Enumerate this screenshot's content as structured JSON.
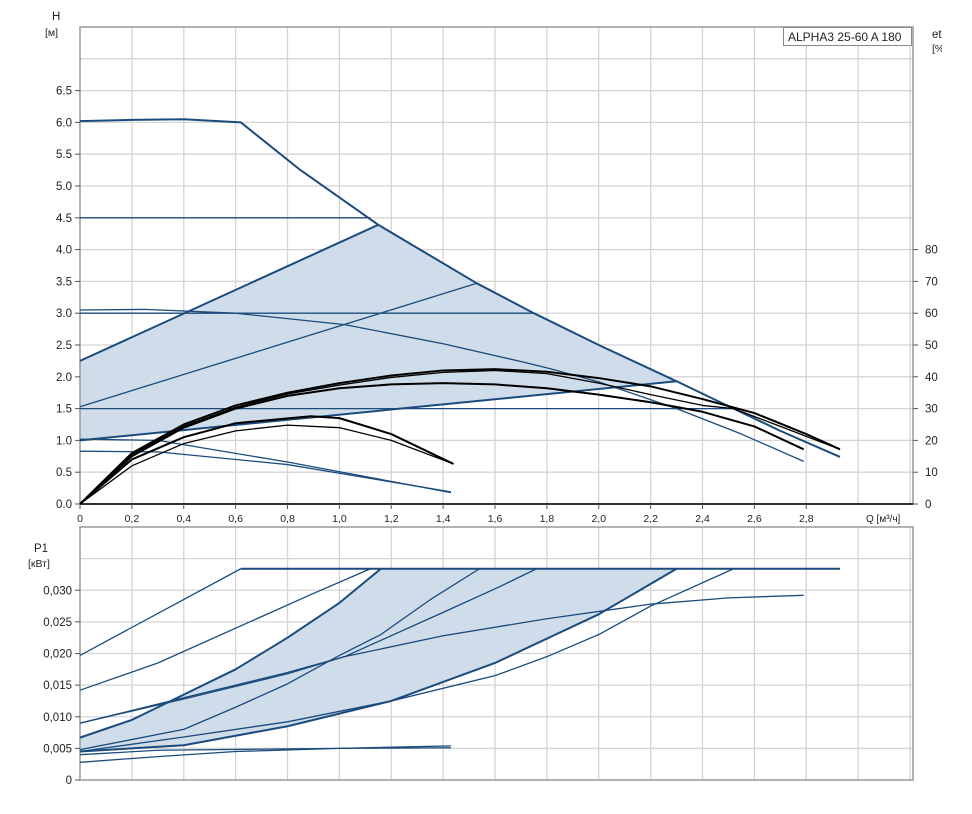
{
  "chart_data": [
    {
      "type": "line",
      "title": "",
      "ylabel": "H",
      "yunit": "[м]",
      "y2label": "eta",
      "y2unit": "[%]",
      "xlabel": "Q [м³/ч]",
      "xlim": [
        0,
        3.2
      ],
      "ylim": [
        0,
        7.5
      ],
      "y2lim": [
        0,
        150
      ],
      "grid": true,
      "legend": "top-right",
      "legend_text": "ALPHA3 25-60 A 180",
      "xticks": [
        "0",
        "0,2",
        "0,4",
        "0,6",
        "0,8",
        "1,0",
        "1,2",
        "1,4",
        "1,6",
        "1,8",
        "2,0",
        "2,2",
        "2,4",
        "2,6",
        "2,8"
      ],
      "yticks": [
        "0.0",
        "0.5",
        "1.0",
        "1.5",
        "2.0",
        "2.5",
        "3.0",
        "3.5",
        "4.0",
        "4.5",
        "5.0",
        "5.5",
        "6.0",
        "6.5"
      ],
      "y2ticks": [
        "0",
        "10",
        "20",
        "30",
        "40",
        "50",
        "60",
        "70",
        "80"
      ],
      "fill_region": [
        [
          0,
          1.0
        ],
        [
          0,
          2.25
        ],
        [
          1.15,
          4.39
        ],
        [
          1.53,
          3.47
        ],
        [
          1.75,
          3.0
        ],
        [
          2.3,
          1.93
        ]
      ],
      "series": [
        {
          "kind": "head",
          "weight": "bold",
          "color": "#1b4b7c",
          "points": [
            [
              0,
              6.02
            ],
            [
              0.2,
              6.04
            ],
            [
              0.4,
              6.05
            ],
            [
              0.62,
              6.0
            ],
            [
              0.85,
              5.25
            ],
            [
              1.15,
              4.39
            ],
            [
              1.53,
              3.47
            ],
            [
              1.75,
              3.0
            ],
            [
              2.0,
              2.5
            ],
            [
              2.3,
              1.93
            ],
            [
              2.52,
              1.5
            ],
            [
              2.7,
              1.15
            ],
            [
              2.93,
              0.74
            ]
          ]
        },
        {
          "kind": "head",
          "weight": "normal",
          "color": "#1b4b7c",
          "points": [
            [
              0,
              4.5
            ],
            [
              1.12,
              4.5
            ]
          ]
        },
        {
          "kind": "head",
          "weight": "bold",
          "color": "#1b4b7c",
          "points": [
            [
              0,
              2.25
            ],
            [
              1.15,
              4.39
            ]
          ]
        },
        {
          "kind": "head",
          "weight": "normal",
          "color": "#1b4b7c",
          "points": [
            [
              0,
              1.53
            ],
            [
              1.53,
              3.47
            ]
          ]
        },
        {
          "kind": "head",
          "weight": "normal",
          "color": "#1b4b7c",
          "points": [
            [
              0,
              3.0
            ],
            [
              1.75,
              3.0
            ]
          ]
        },
        {
          "kind": "head",
          "weight": "normal",
          "color": "#1b4b7c",
          "points": [
            [
              0,
              3.05
            ],
            [
              0.25,
              3.06
            ],
            [
              0.6,
              3.0
            ],
            [
              1.02,
              2.82
            ],
            [
              1.4,
              2.52
            ],
            [
              1.7,
              2.24
            ],
            [
              1.81,
              2.13
            ],
            [
              2.0,
              1.92
            ],
            [
              2.3,
              1.5
            ],
            [
              2.55,
              1.1
            ],
            [
              2.79,
              0.67
            ]
          ]
        },
        {
          "kind": "head",
          "weight": "bold",
          "color": "#1b4b7c",
          "points": [
            [
              0,
              1.0
            ],
            [
              2.3,
              1.93
            ]
          ]
        },
        {
          "kind": "head",
          "weight": "normal",
          "color": "#1b4b7c",
          "points": [
            [
              0,
              1.5
            ],
            [
              2.52,
              1.5
            ]
          ]
        },
        {
          "kind": "head",
          "weight": "normal",
          "color": "#1b4b7c",
          "points": [
            [
              0,
              1.02
            ],
            [
              0.3,
              1.0
            ],
            [
              0.8,
              0.66
            ],
            [
              1.43,
              0.18
            ]
          ]
        },
        {
          "kind": "head",
          "weight": "normal",
          "color": "#1b4b7c",
          "points": [
            [
              0,
              0.83
            ],
            [
              0.3,
              0.82
            ],
            [
              0.8,
              0.62
            ],
            [
              1.43,
              0.19
            ]
          ]
        },
        {
          "kind": "efficiency",
          "weight": "bold",
          "color": "#000000",
          "points": [
            [
              0,
              0
            ],
            [
              0.2,
              0.8
            ],
            [
              0.4,
              1.25
            ],
            [
              0.6,
              1.55
            ],
            [
              0.8,
              1.75
            ],
            [
              1.0,
              1.9
            ],
            [
              1.2,
              2.02
            ],
            [
              1.4,
              2.1
            ],
            [
              1.6,
              2.12
            ],
            [
              1.8,
              2.08
            ],
            [
              2.0,
              1.98
            ],
            [
              2.2,
              1.85
            ],
            [
              2.4,
              1.65
            ],
            [
              2.6,
              1.43
            ],
            [
              2.8,
              1.1
            ],
            [
              2.93,
              0.86
            ]
          ]
        },
        {
          "kind": "efficiency",
          "weight": "normal",
          "color": "#000000",
          "points": [
            [
              0,
              0
            ],
            [
              0.2,
              0.78
            ],
            [
              0.4,
              1.22
            ],
            [
              0.6,
              1.52
            ],
            [
              0.8,
              1.73
            ],
            [
              1.0,
              1.87
            ],
            [
              1.2,
              1.99
            ],
            [
              1.4,
              2.07
            ],
            [
              1.6,
              2.1
            ],
            [
              1.8,
              2.05
            ],
            [
              2.0,
              1.9
            ],
            [
              2.2,
              1.72
            ],
            [
              2.4,
              1.55
            ],
            [
              2.52,
              1.5
            ],
            [
              2.7,
              1.22
            ],
            [
              2.93,
              0.86
            ]
          ]
        },
        {
          "kind": "efficiency",
          "weight": "bold",
          "color": "#000000",
          "points": [
            [
              0,
              0
            ],
            [
              0.2,
              0.75
            ],
            [
              0.4,
              1.2
            ],
            [
              0.6,
              1.5
            ],
            [
              0.8,
              1.7
            ],
            [
              1.0,
              1.82
            ],
            [
              1.2,
              1.88
            ],
            [
              1.4,
              1.9
            ],
            [
              1.6,
              1.88
            ],
            [
              1.8,
              1.82
            ],
            [
              2.0,
              1.72
            ],
            [
              2.2,
              1.6
            ],
            [
              2.4,
              1.45
            ],
            [
              2.6,
              1.22
            ],
            [
              2.79,
              0.86
            ]
          ]
        },
        {
          "kind": "efficiency",
          "weight": "bold",
          "color": "#000000",
          "points": [
            [
              0,
              0
            ],
            [
              0.2,
              0.7
            ],
            [
              0.4,
              1.05
            ],
            [
              0.6,
              1.27
            ],
            [
              0.89,
              1.38
            ],
            [
              1.0,
              1.35
            ],
            [
              1.2,
              1.1
            ],
            [
              1.44,
              0.63
            ]
          ]
        },
        {
          "kind": "efficiency",
          "weight": "normal",
          "color": "#000000",
          "points": [
            [
              0,
              0
            ],
            [
              0.2,
              0.6
            ],
            [
              0.4,
              0.95
            ],
            [
              0.6,
              1.15
            ],
            [
              0.8,
              1.24
            ],
            [
              1.0,
              1.2
            ],
            [
              1.2,
              1.0
            ],
            [
              1.44,
              0.63
            ]
          ]
        }
      ]
    },
    {
      "type": "line",
      "title": "",
      "ylabel": "P1",
      "yunit": "[кВт]",
      "xlim": [
        0,
        3.2
      ],
      "ylim": [
        0,
        0.04
      ],
      "grid": true,
      "yticks": [
        "0",
        "0,005",
        "0,010",
        "0,015",
        "0,020",
        "0,025",
        "0,030"
      ],
      "fill_region": [
        [
          0,
          0.0067
        ],
        [
          0.2,
          0.0095
        ],
        [
          0.4,
          0.0135
        ],
        [
          0.6,
          0.0175
        ],
        [
          0.8,
          0.0225
        ],
        [
          1.0,
          0.028
        ],
        [
          1.16,
          0.0334
        ],
        [
          2.3,
          0.0334
        ],
        [
          2.0,
          0.0262
        ],
        [
          1.6,
          0.0185
        ],
        [
          1.2,
          0.0125
        ],
        [
          0.8,
          0.0085
        ],
        [
          0.4,
          0.0055
        ],
        [
          0,
          0.0045
        ]
      ],
      "series": [
        {
          "weight": "normal",
          "color": "#1b4b7c",
          "points": [
            [
              0,
              0.0197
            ],
            [
              0.62,
              0.0334
            ]
          ]
        },
        {
          "weight": "bold",
          "color": "#1b4b7c",
          "points": [
            [
              0.62,
              0.0334
            ],
            [
              2.93,
              0.0334
            ]
          ]
        },
        {
          "weight": "normal",
          "color": "#1b4b7c",
          "points": [
            [
              0,
              0.0142
            ],
            [
              0.3,
              0.0185
            ],
            [
              0.6,
              0.024
            ],
            [
              0.9,
              0.0295
            ],
            [
              1.12,
              0.0334
            ]
          ]
        },
        {
          "weight": "bold",
          "color": "#1b4b7c",
          "points": [
            [
              0,
              0.0067
            ],
            [
              0.2,
              0.0095
            ],
            [
              0.4,
              0.0135
            ],
            [
              0.6,
              0.0175
            ],
            [
              0.8,
              0.0225
            ],
            [
              1.0,
              0.028
            ],
            [
              1.16,
              0.0334
            ]
          ]
        },
        {
          "weight": "normal",
          "color": "#1b4b7c",
          "points": [
            [
              0,
              0.0048
            ],
            [
              0.4,
              0.008
            ],
            [
              0.6,
              0.0115
            ],
            [
              0.8,
              0.0152
            ],
            [
              1.0,
              0.0197
            ],
            [
              1.16,
              0.023
            ],
            [
              1.35,
              0.0285
            ],
            [
              1.54,
              0.0334
            ]
          ]
        },
        {
          "weight": "normal",
          "color": "#1b4b7c",
          "points": [
            [
              0,
              0.009
            ],
            [
              0.4,
              0.013
            ],
            [
              0.8,
              0.017
            ],
            [
              1.02,
              0.0195
            ],
            [
              1.4,
              0.0265
            ],
            [
              1.62,
              0.0306
            ],
            [
              1.76,
              0.0334
            ]
          ]
        },
        {
          "weight": "normal",
          "color": "#1b4b7c",
          "points": [
            [
              0,
              0.009
            ],
            [
              0.4,
              0.0128
            ],
            [
              0.8,
              0.0168
            ],
            [
              1.02,
              0.0195
            ],
            [
              1.4,
              0.0228
            ],
            [
              1.8,
              0.0255
            ],
            [
              2.2,
              0.0278
            ],
            [
              2.5,
              0.0288
            ],
            [
              2.79,
              0.0292
            ]
          ]
        },
        {
          "weight": "bold",
          "color": "#1b4b7c",
          "points": [
            [
              0,
              0.0045
            ],
            [
              0.4,
              0.0055
            ],
            [
              0.8,
              0.0085
            ],
            [
              1.2,
              0.0125
            ],
            [
              1.6,
              0.0185
            ],
            [
              2.0,
              0.0262
            ],
            [
              2.3,
              0.0334
            ]
          ]
        },
        {
          "weight": "normal",
          "color": "#1b4b7c",
          "points": [
            [
              0,
              0.0045
            ],
            [
              0.4,
              0.0068
            ],
            [
              0.8,
              0.0092
            ],
            [
              1.2,
              0.0125
            ],
            [
              1.6,
              0.0165
            ],
            [
              1.8,
              0.0195
            ],
            [
              2.0,
              0.023
            ],
            [
              2.2,
              0.0275
            ],
            [
              2.52,
              0.0334
            ]
          ]
        },
        {
          "weight": "normal",
          "color": "#1b4b7c",
          "points": [
            [
              0,
              0.0028
            ],
            [
              0.3,
              0.0037
            ],
            [
              0.6,
              0.0045
            ],
            [
              1.0,
              0.005
            ],
            [
              1.43,
              0.0054
            ]
          ]
        },
        {
          "weight": "normal",
          "color": "#1b4b7c",
          "points": [
            [
              0,
              0.004
            ],
            [
              0.3,
              0.0047
            ],
            [
              1.0,
              0.005
            ],
            [
              1.43,
              0.0051
            ]
          ]
        }
      ]
    }
  ],
  "colors": {
    "curve": "#1b4b7c",
    "fill": "#cfdce9",
    "grid": "#d4d4d4",
    "axis": "#555555",
    "efficiency": "#000000"
  }
}
